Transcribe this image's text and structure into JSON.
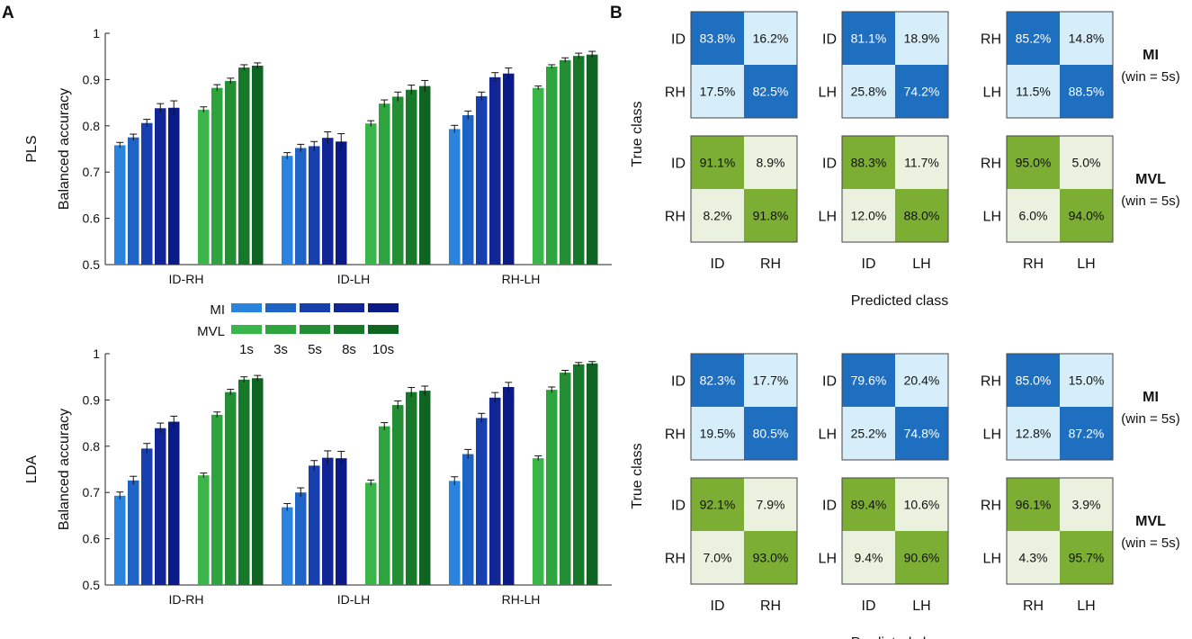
{
  "figure": {
    "panel_a_letter": "A",
    "panel_b_letter": "B"
  },
  "colors": {
    "mi": [
      "#2a83dc",
      "#1e63c6",
      "#173fae",
      "#112596",
      "#0a1a86"
    ],
    "mvl": [
      "#3ab54a",
      "#2ea43f",
      "#238e34",
      "#18782a",
      "#0f6421"
    ],
    "mi_high": "#1f6fc0",
    "mi_low": "#d6eef9",
    "mvl_high": "#7cae34",
    "mvl_low": "#eaf1df",
    "error_bar": "#111111"
  },
  "legend": {
    "mi_label": "MI",
    "mvl_label": "MVL",
    "windows": [
      "1s",
      "3s",
      "5s",
      "8s",
      "10s"
    ]
  },
  "chart_data": [
    {
      "type": "bar",
      "method": "PLS",
      "ylabel": "Balanced accuracy",
      "ylim": [
        0.5,
        1.0
      ],
      "yticks": [
        "0.5",
        "0.6",
        "0.7",
        "0.8",
        "0.9",
        "1"
      ],
      "categories": [
        "ID-RH",
        "ID-LH",
        "RH-LH"
      ],
      "windows": [
        "1s",
        "3s",
        "5s",
        "8s",
        "10s"
      ],
      "series": [
        {
          "name": "MI",
          "values": [
            [
              0.758,
              0.775,
              0.806,
              0.838,
              0.839
            ],
            [
              0.735,
              0.752,
              0.756,
              0.774,
              0.766
            ],
            [
              0.793,
              0.823,
              0.864,
              0.905,
              0.913
            ]
          ],
          "errors": [
            [
              0.006,
              0.007,
              0.008,
              0.01,
              0.015
            ],
            [
              0.007,
              0.008,
              0.01,
              0.013,
              0.017
            ],
            [
              0.008,
              0.009,
              0.009,
              0.01,
              0.012
            ]
          ]
        },
        {
          "name": "MVL",
          "values": [
            [
              0.835,
              0.882,
              0.897,
              0.926,
              0.93
            ],
            [
              0.805,
              0.848,
              0.863,
              0.878,
              0.886
            ],
            [
              0.882,
              0.928,
              0.942,
              0.951,
              0.954
            ]
          ],
          "errors": [
            [
              0.006,
              0.007,
              0.006,
              0.006,
              0.006
            ],
            [
              0.006,
              0.008,
              0.01,
              0.01,
              0.012
            ],
            [
              0.004,
              0.004,
              0.005,
              0.006,
              0.007
            ]
          ]
        }
      ]
    },
    {
      "type": "bar",
      "method": "LDA",
      "ylabel": "Balanced accuracy",
      "ylim": [
        0.5,
        1.0
      ],
      "yticks": [
        "0.5",
        "0.6",
        "0.7",
        "0.8",
        "0.9",
        "1"
      ],
      "categories": [
        "ID-RH",
        "ID-LH",
        "RH-LH"
      ],
      "windows": [
        "1s",
        "3s",
        "5s",
        "8s",
        "10s"
      ],
      "series": [
        {
          "name": "MI",
          "values": [
            [
              0.693,
              0.726,
              0.795,
              0.839,
              0.853
            ],
            [
              0.668,
              0.7,
              0.758,
              0.775,
              0.774
            ],
            [
              0.725,
              0.783,
              0.861,
              0.905,
              0.928
            ]
          ],
          "errors": [
            [
              0.008,
              0.009,
              0.011,
              0.011,
              0.012
            ],
            [
              0.008,
              0.01,
              0.011,
              0.015,
              0.015
            ],
            [
              0.009,
              0.01,
              0.01,
              0.011,
              0.01
            ]
          ]
        },
        {
          "name": "MVL",
          "values": [
            [
              0.737,
              0.868,
              0.917,
              0.944,
              0.947
            ],
            [
              0.721,
              0.843,
              0.889,
              0.917,
              0.92
            ],
            [
              0.774,
              0.922,
              0.959,
              0.977,
              0.979
            ]
          ],
          "errors": [
            [
              0.005,
              0.006,
              0.006,
              0.006,
              0.006
            ],
            [
              0.006,
              0.008,
              0.009,
              0.01,
              0.01
            ],
            [
              0.005,
              0.006,
              0.005,
              0.004,
              0.004
            ]
          ]
        }
      ]
    }
  ],
  "confusion": {
    "true_label": "True class",
    "pred_label": "Predicted class",
    "blocks": [
      {
        "rows": [
          {
            "title": "MI",
            "sub": "(win = 5s)",
            "scheme": "mi",
            "matrices": [
              {
                "labels": [
                  "ID",
                  "RH"
                ],
                "values": [
                  "83.8%",
                  "16.2%",
                  "17.5%",
                  "82.5%"
                ]
              },
              {
                "labels": [
                  "ID",
                  "LH"
                ],
                "values": [
                  "81.1%",
                  "18.9%",
                  "25.8%",
                  "74.2%"
                ]
              },
              {
                "labels": [
                  "RH",
                  "LH"
                ],
                "values": [
                  "85.2%",
                  "14.8%",
                  "11.5%",
                  "88.5%"
                ]
              }
            ]
          },
          {
            "title": "MVL",
            "sub": "(win = 5s)",
            "scheme": "mvl",
            "matrices": [
              {
                "labels": [
                  "ID",
                  "RH"
                ],
                "values": [
                  "91.1%",
                  "8.9%",
                  "8.2%",
                  "91.8%"
                ]
              },
              {
                "labels": [
                  "ID",
                  "LH"
                ],
                "values": [
                  "88.3%",
                  "11.7%",
                  "12.0%",
                  "88.0%"
                ]
              },
              {
                "labels": [
                  "RH",
                  "LH"
                ],
                "values": [
                  "95.0%",
                  "5.0%",
                  "6.0%",
                  "94.0%"
                ]
              }
            ]
          }
        ]
      },
      {
        "rows": [
          {
            "title": "MI",
            "sub": "(win = 5s)",
            "scheme": "mi",
            "matrices": [
              {
                "labels": [
                  "ID",
                  "RH"
                ],
                "values": [
                  "82.3%",
                  "17.7%",
                  "19.5%",
                  "80.5%"
                ]
              },
              {
                "labels": [
                  "ID",
                  "LH"
                ],
                "values": [
                  "79.6%",
                  "20.4%",
                  "25.2%",
                  "74.8%"
                ]
              },
              {
                "labels": [
                  "RH",
                  "LH"
                ],
                "values": [
                  "85.0%",
                  "15.0%",
                  "12.8%",
                  "87.2%"
                ]
              }
            ]
          },
          {
            "title": "MVL",
            "sub": "(win = 5s)",
            "scheme": "mvl",
            "matrices": [
              {
                "labels": [
                  "ID",
                  "RH"
                ],
                "values": [
                  "92.1%",
                  "7.9%",
                  "7.0%",
                  "93.0%"
                ]
              },
              {
                "labels": [
                  "ID",
                  "LH"
                ],
                "values": [
                  "89.4%",
                  "10.6%",
                  "9.4%",
                  "90.6%"
                ]
              },
              {
                "labels": [
                  "RH",
                  "LH"
                ],
                "values": [
                  "96.1%",
                  "3.9%",
                  "4.3%",
                  "95.7%"
                ]
              }
            ]
          }
        ]
      }
    ]
  }
}
